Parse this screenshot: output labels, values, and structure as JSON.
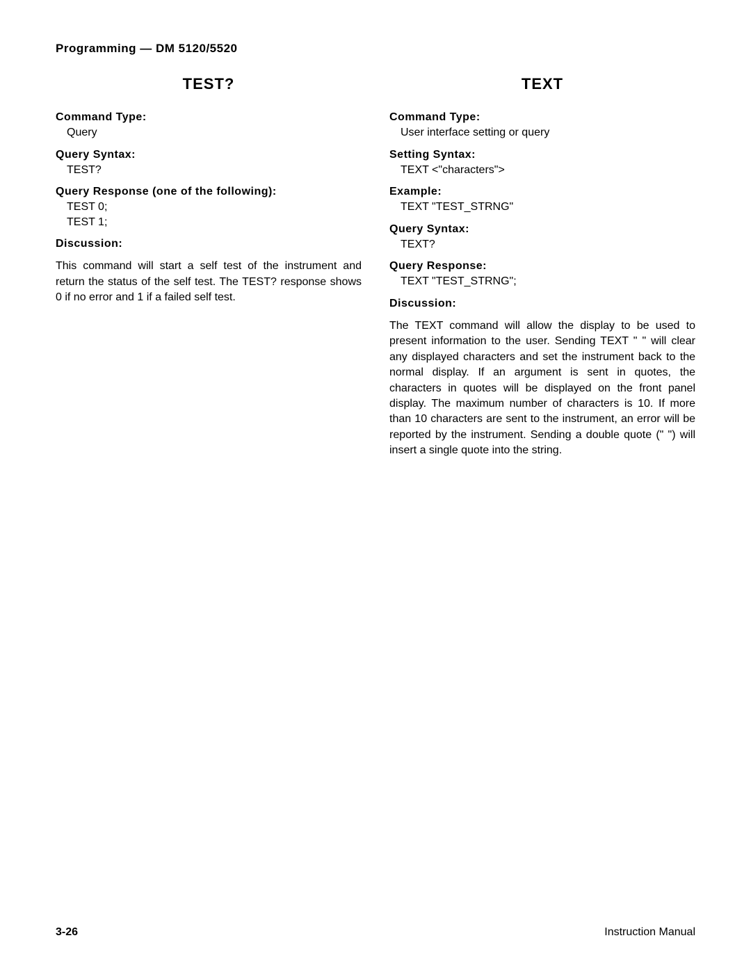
{
  "header": "Programming — DM 5120/5520",
  "left": {
    "title": "TEST?",
    "sections": [
      {
        "label": "Command Type:",
        "value": "Query"
      },
      {
        "label": "Query Syntax:",
        "value": "TEST?"
      },
      {
        "label": "Query Response (one of the following):",
        "value": "TEST 0;\nTEST 1;"
      },
      {
        "label": "Discussion:",
        "value": ""
      }
    ],
    "discussion": "This command will start a self test of the instrument and return the status of the self test. The TEST? response shows 0 if no error and 1 if a failed self test."
  },
  "right": {
    "title": "TEXT",
    "sections": [
      {
        "label": "Command Type:",
        "value": "User interface setting or query"
      },
      {
        "label": "Setting Syntax:",
        "value": "TEXT <\"characters\">"
      },
      {
        "label": "Example:",
        "value": "TEXT \"TEST_STRNG\""
      },
      {
        "label": "Query Syntax:",
        "value": "TEXT?"
      },
      {
        "label": "Query Response:",
        "value": "TEXT \"TEST_STRNG\";"
      },
      {
        "label": "Discussion:",
        "value": ""
      }
    ],
    "discussion": "The TEXT command will allow the display to be used to present information to the user. Sending TEXT \" \" will clear any displayed characters and set the instrument back to the normal display. If an argument is sent in quotes, the characters in quotes will be displayed on the front panel display. The maximum number of characters is 10. If more than 10 characters are sent to the instrument, an error will be reported by the instrument. Sending a double quote (\" \") will insert a single quote into the string."
  },
  "footer": {
    "page": "3-26",
    "label": "Instruction Manual"
  }
}
